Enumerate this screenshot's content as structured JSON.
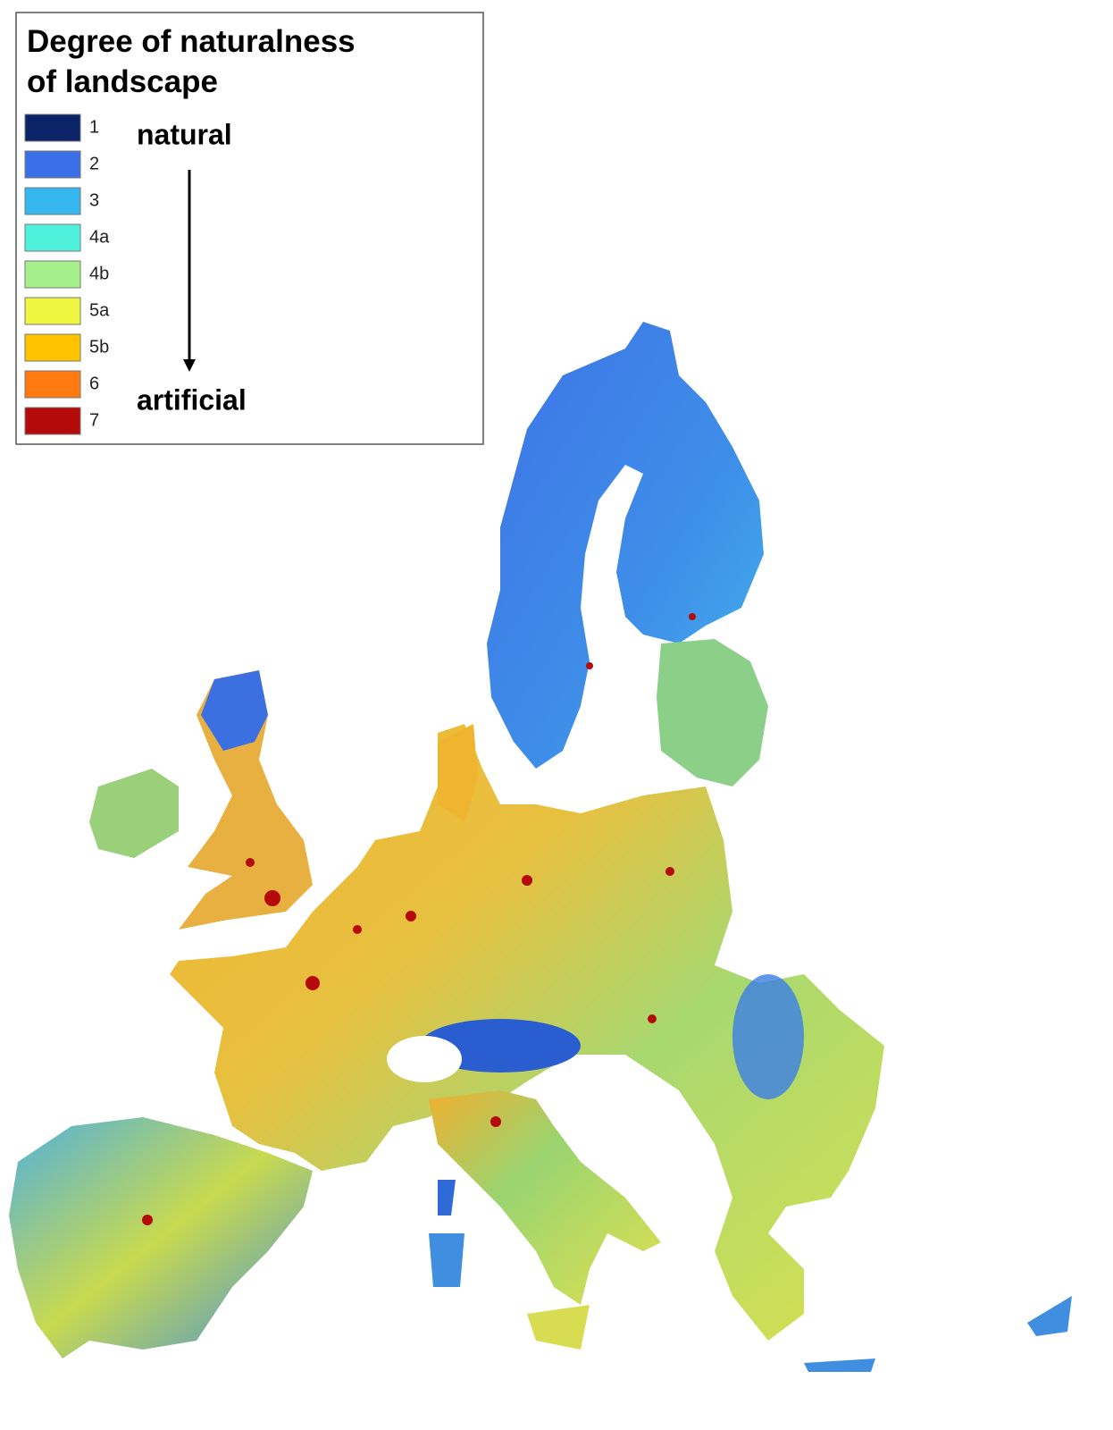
{
  "legend": {
    "title": [
      "Degree of naturalness",
      "of landscape"
    ],
    "items": [
      {
        "label": "1",
        "color": "#0b2468"
      },
      {
        "label": "2",
        "color": "#3a6fe8"
      },
      {
        "label": "3",
        "color": "#35b8f0"
      },
      {
        "label": "4a",
        "color": "#4ff0dc"
      },
      {
        "label": "4b",
        "color": "#a6f08c"
      },
      {
        "label": "5a",
        "color": "#f0f540"
      },
      {
        "label": "5b",
        "color": "#ffc400"
      },
      {
        "label": "6",
        "color": "#ff7a10"
      },
      {
        "label": "7",
        "color": "#b40a0a"
      }
    ],
    "natural_label": "natural",
    "artificial_label": "artificial"
  }
}
